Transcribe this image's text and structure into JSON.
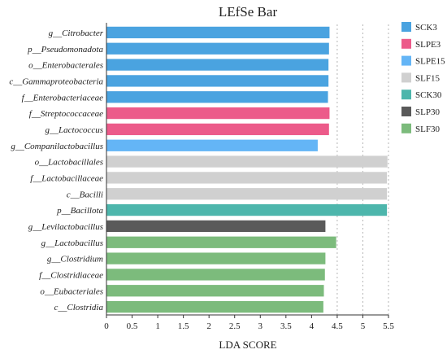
{
  "chart_data": {
    "type": "bar",
    "orientation": "horizontal",
    "title": "LEfSe Bar",
    "xlabel": "LDA SCORE",
    "ylabel": "",
    "xlim": [
      0,
      5.5
    ],
    "xticks": [
      "0",
      "0.5",
      "1",
      "1.5",
      "2",
      "2.5",
      "3",
      "3.5",
      "4",
      "4.5",
      "5",
      "5.5"
    ],
    "grid": "vertical dotted at 4.5, 5, 5.5",
    "legend_position": "right",
    "series": [
      {
        "name": "SCK3",
        "color": "#4aa3e0"
      },
      {
        "name": "SLPE3",
        "color": "#ec5b8a"
      },
      {
        "name": "SLPE15",
        "color": "#64b5f6"
      },
      {
        "name": "SLF15",
        "color": "#d0d0d0"
      },
      {
        "name": "SCK30",
        "color": "#4db6ac"
      },
      {
        "name": "SLP30",
        "color": "#5a5a5a"
      },
      {
        "name": "SLF30",
        "color": "#7cbb7c"
      }
    ],
    "bars": [
      {
        "label": "g__Citrobacter",
        "value": 4.35,
        "group": "SCK3"
      },
      {
        "label": "p__Pseudomonadota",
        "value": 4.34,
        "group": "SCK3"
      },
      {
        "label": "o__Enterobacterales",
        "value": 4.33,
        "group": "SCK3"
      },
      {
        "label": "c__Gammaproteobacteria",
        "value": 4.33,
        "group": "SCK3"
      },
      {
        "label": "f__Enterobacteriaceae",
        "value": 4.32,
        "group": "SCK3"
      },
      {
        "label": "f__Streptococcaceae",
        "value": 4.35,
        "group": "SLPE3"
      },
      {
        "label": "g__Lactococcus",
        "value": 4.34,
        "group": "SLPE3"
      },
      {
        "label": "g__Companilactobacillus",
        "value": 4.12,
        "group": "SLPE15"
      },
      {
        "label": "o__Lactobacillales",
        "value": 5.48,
        "group": "SLF15"
      },
      {
        "label": "f__Lactobacillaceae",
        "value": 5.47,
        "group": "SLF15"
      },
      {
        "label": "c__Bacilli",
        "value": 5.47,
        "group": "SLF15"
      },
      {
        "label": "p__Bacillota",
        "value": 5.47,
        "group": "SCK30"
      },
      {
        "label": "g__Levilactobacillus",
        "value": 4.27,
        "group": "SLP30"
      },
      {
        "label": "g__Lactobacillus",
        "value": 4.48,
        "group": "SLF30"
      },
      {
        "label": "g__Clostridium",
        "value": 4.27,
        "group": "SLF30"
      },
      {
        "label": "f__Clostridiaceae",
        "value": 4.26,
        "group": "SLF30"
      },
      {
        "label": "o__Eubacteriales",
        "value": 4.24,
        "group": "SLF30"
      },
      {
        "label": "c__Clostridia",
        "value": 4.23,
        "group": "SLF30"
      }
    ]
  }
}
